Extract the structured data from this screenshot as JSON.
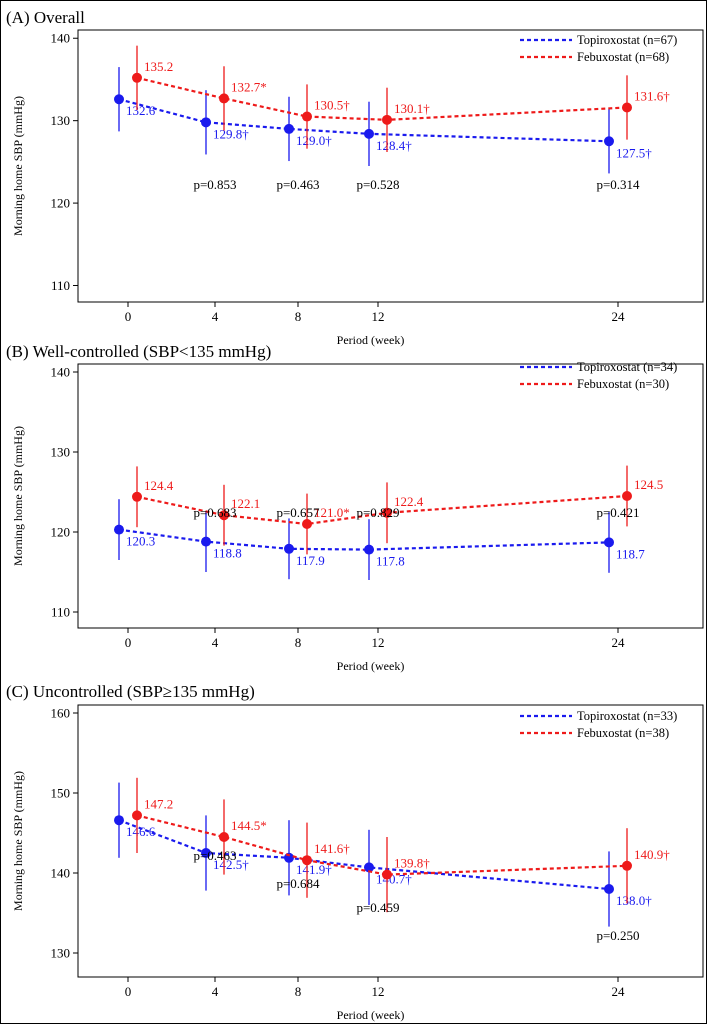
{
  "colors": {
    "topiroxostat": "#1a1aee",
    "febuxostat": "#ee1a1a",
    "axis": "#000000"
  },
  "chart_data": [
    {
      "type": "line",
      "title": "(A) Overall",
      "xlabel": "Period (week)",
      "ylabel": "Morning home SBP (mmHg)",
      "x_ticks": [
        0,
        4,
        8,
        12,
        24
      ],
      "y_ticks": [
        110,
        120,
        130,
        140
      ],
      "ylim": [
        108,
        141
      ],
      "legend": [
        "Topiroxostat (n=67)",
        "Febuxostat (n=68)"
      ],
      "series": [
        {
          "name": "Topiroxostat",
          "color": "#1a1aee",
          "x": [
            0,
            4,
            8,
            12,
            24
          ],
          "values": [
            132.6,
            129.8,
            129.0,
            128.4,
            127.5
          ],
          "err_low": [
            128.7,
            125.9,
            125.1,
            124.5,
            123.6
          ],
          "err_high": [
            136.5,
            133.7,
            132.9,
            132.3,
            131.4
          ],
          "labels": [
            "132.6",
            "129.8†",
            "129.0†",
            "128.4†",
            "127.5†"
          ]
        },
        {
          "name": "Febuxostat",
          "color": "#ee1a1a",
          "x": [
            0,
            4,
            8,
            12,
            24
          ],
          "values": [
            135.2,
            132.7,
            130.5,
            130.1,
            131.6
          ],
          "err_low": [
            131.3,
            128.8,
            126.6,
            126.2,
            127.7
          ],
          "err_high": [
            139.1,
            136.6,
            134.4,
            134.0,
            135.5
          ],
          "labels": [
            "135.2",
            "132.7*",
            "130.5†",
            "130.1†",
            "131.6†"
          ]
        }
      ],
      "pvalues": [
        {
          "x": 4,
          "text": "p=0.853"
        },
        {
          "x": 8,
          "text": "p=0.463"
        },
        {
          "x": 12,
          "text": "p=0.528"
        },
        {
          "x": 24,
          "text": "p=0.314"
        }
      ]
    },
    {
      "type": "line",
      "title": "(B) Well-controlled (SBP<135 mmHg)",
      "xlabel": "Period (week)",
      "ylabel": "Morning home SBP (mmHg)",
      "x_ticks": [
        0,
        4,
        8,
        12,
        24
      ],
      "y_ticks": [
        110,
        120,
        130,
        140
      ],
      "ylim": [
        108,
        141
      ],
      "legend": [
        "Topiroxostat (n=34)",
        "Febuxostat (n=30)"
      ],
      "series": [
        {
          "name": "Topiroxostat",
          "color": "#1a1aee",
          "x": [
            0,
            4,
            8,
            12,
            24
          ],
          "values": [
            120.3,
            118.8,
            117.9,
            117.8,
            118.7
          ],
          "err_low": [
            116.5,
            115.0,
            114.1,
            114.0,
            114.9
          ],
          "err_high": [
            124.1,
            122.6,
            121.7,
            121.6,
            122.5
          ],
          "labels": [
            "120.3",
            "118.8",
            "117.9",
            "117.8",
            "118.7"
          ]
        },
        {
          "name": "Febuxostat",
          "color": "#ee1a1a",
          "x": [
            0,
            4,
            8,
            12,
            24
          ],
          "values": [
            124.4,
            122.1,
            121.0,
            122.4,
            124.5
          ],
          "err_low": [
            120.6,
            118.3,
            117.2,
            118.6,
            120.7
          ],
          "err_high": [
            128.2,
            125.9,
            124.8,
            126.2,
            128.3
          ],
          "labels": [
            "124.4",
            "122.1",
            "121.0*",
            "122.4",
            "124.5"
          ]
        }
      ],
      "pvalues": [
        {
          "x": 4,
          "text": "p=0.683"
        },
        {
          "x": 8,
          "text": "p=0.657"
        },
        {
          "x": 12,
          "text": "p=0.829"
        },
        {
          "x": 24,
          "text": "p=0.421"
        }
      ]
    },
    {
      "type": "line",
      "title": "(C) Uncontrolled (SBP≥135 mmHg)",
      "xlabel": "Period (week)",
      "ylabel": "Morning home SBP (mmHg)",
      "x_ticks": [
        0,
        4,
        8,
        12,
        24
      ],
      "y_ticks": [
        130,
        140,
        150,
        160
      ],
      "ylim": [
        127,
        161
      ],
      "legend": [
        "Topiroxostat (n=33)",
        "Febuxostat (n=38)"
      ],
      "series": [
        {
          "name": "Topiroxostat",
          "color": "#1a1aee",
          "x": [
            0,
            4,
            8,
            12,
            24
          ],
          "values": [
            146.6,
            142.5,
            141.9,
            140.7,
            138.0
          ],
          "err_low": [
            141.9,
            137.8,
            137.2,
            136.0,
            133.3
          ],
          "err_high": [
            151.3,
            147.2,
            146.6,
            145.4,
            142.7
          ],
          "labels": [
            "146.6",
            "142.5†",
            "141.9†",
            "140.7†",
            "138.0†"
          ]
        },
        {
          "name": "Febuxostat",
          "color": "#ee1a1a",
          "x": [
            0,
            4,
            8,
            12,
            24
          ],
          "values": [
            147.2,
            144.5,
            141.6,
            139.8,
            140.9
          ],
          "err_low": [
            142.5,
            139.8,
            136.9,
            135.1,
            136.2
          ],
          "err_high": [
            151.9,
            149.2,
            146.3,
            144.5,
            145.6
          ],
          "labels": [
            "147.2",
            "144.5*",
            "141.6†",
            "139.8†",
            "140.9†"
          ]
        }
      ],
      "pvalues": [
        {
          "x": 4,
          "text": "p=0.463"
        },
        {
          "x": 8,
          "text": "p=0.684"
        },
        {
          "x": 12,
          "text": "p=0.459"
        },
        {
          "x": 24,
          "text": "p=0.250"
        }
      ]
    }
  ]
}
